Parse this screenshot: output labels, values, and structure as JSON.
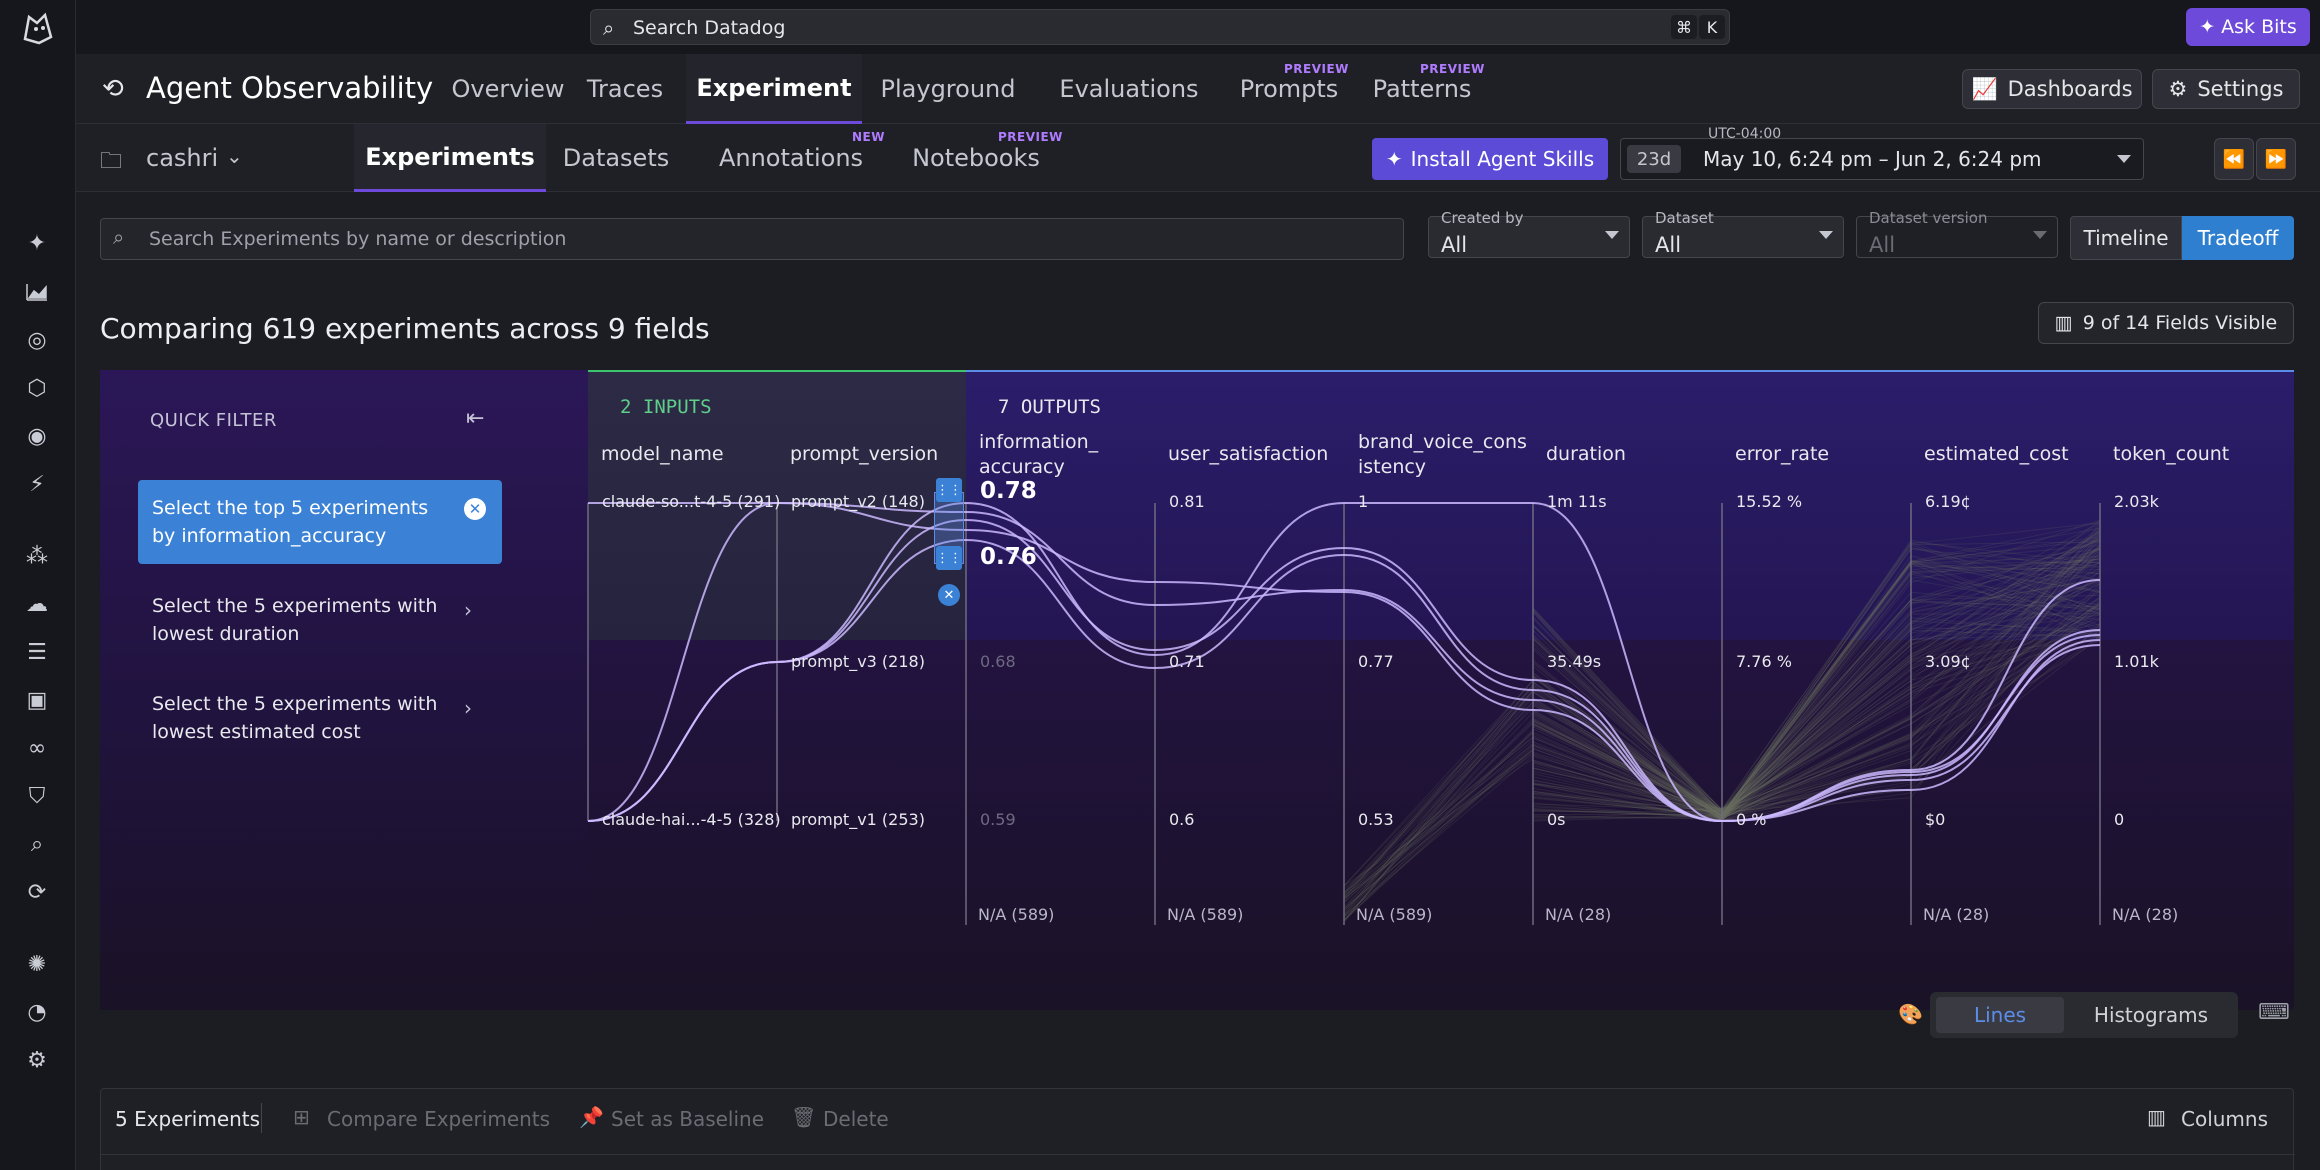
{
  "topbar": {
    "search_placeholder": "Search Datadog",
    "shortcut_cmd": "⌘",
    "shortcut_key": "K",
    "ask_bits": "Ask Bits"
  },
  "product": {
    "title": "Agent Observability",
    "tabs": [
      {
        "label": "Overview",
        "badge": ""
      },
      {
        "label": "Traces",
        "badge": ""
      },
      {
        "label": "Experiment",
        "badge": ""
      },
      {
        "label": "Playground",
        "badge": ""
      },
      {
        "label": "Evaluations",
        "badge": ""
      },
      {
        "label": "Prompts",
        "badge": "PREVIEW"
      },
      {
        "label": "Patterns",
        "badge": "PREVIEW"
      }
    ],
    "dashboards": "Dashboards",
    "settings": "Settings"
  },
  "subnav": {
    "project": "cashri",
    "tabs": [
      {
        "label": "Experiments",
        "badge": ""
      },
      {
        "label": "Datasets",
        "badge": ""
      },
      {
        "label": "Annotations",
        "badge": "NEW"
      },
      {
        "label": "Notebooks",
        "badge": "PREVIEW"
      }
    ],
    "install_skills": "Install Agent Skills",
    "timezone": "UTC-04:00",
    "range_badge": "23d",
    "range": "May 10, 6:24 pm – Jun 2, 6:24 pm"
  },
  "filters": {
    "search_placeholder": "Search Experiments by name or description",
    "created_by_label": "Created by",
    "created_by_value": "All",
    "dataset_label": "Dataset",
    "dataset_value": "All",
    "dataset_version_label": "Dataset version",
    "dataset_version_value": "All",
    "view_timeline": "Timeline",
    "view_tradeoff": "Tradeoff"
  },
  "main": {
    "heading": "Comparing 619 experiments across 9 fields",
    "fields_visible": "9 of 14 Fields Visible"
  },
  "quick_filter": {
    "title": "QUICK FILTER",
    "items": [
      {
        "label": "Select the top 5 experiments by information_accuracy"
      },
      {
        "label": "Select the 5 experiments with lowest duration"
      },
      {
        "label": "Select the 5 experiments with lowest estimated cost"
      }
    ]
  },
  "chart": {
    "inputs_label": "2 INPUTS",
    "outputs_label": "7 OUTPUTS",
    "axes": [
      {
        "name": "model_name",
        "ticks": [
          "claude-so...t-4-5 (291)",
          "",
          "claude-hai...-4-5 (328)"
        ],
        "na": ""
      },
      {
        "name": "prompt_version",
        "ticks": [
          "prompt_v2 (148)",
          "prompt_v3 (218)",
          "prompt_v1 (253)"
        ],
        "na": ""
      },
      {
        "name": "information_accuracy",
        "ticks": [
          "0.78",
          "0.68",
          "0.59"
        ],
        "na": "N/A (589)"
      },
      {
        "name": "user_satisfaction",
        "ticks": [
          "0.81",
          "0.71",
          "0.6"
        ],
        "na": "N/A (589)"
      },
      {
        "name": "brand_voice_consistency",
        "ticks": [
          "1",
          "0.77",
          "0.53"
        ],
        "na": "N/A (589)"
      },
      {
        "name": "duration",
        "ticks": [
          "1m 11s",
          "35.49s",
          "0s"
        ],
        "na": "N/A (28)"
      },
      {
        "name": "error_rate",
        "ticks": [
          "15.52 %",
          "7.76 %",
          "0 %"
        ],
        "na": ""
      },
      {
        "name": "estimated_cost",
        "ticks": [
          "6.19¢",
          "3.09¢",
          "$0"
        ],
        "na": "N/A (28)"
      },
      {
        "name": "token_count",
        "ticks": [
          "2.03k",
          "1.01k",
          "0"
        ],
        "na": "N/A (28)"
      }
    ],
    "brush_top": "0.78",
    "brush_bottom": "0.76",
    "mode_lines": "Lines",
    "mode_histograms": "Histograms"
  },
  "table": {
    "count": "5 Experiments",
    "compare": "Compare Experiments",
    "baseline": "Set as Baseline",
    "delete": "Delete",
    "columns": "Columns"
  },
  "colors": {
    "accent": "#6d4ad9",
    "highlight_line": "#c9b6ff",
    "inputs_border": "#3dc36c",
    "outputs_border": "#5b8de8",
    "selected_filter": "#3b82d6"
  }
}
